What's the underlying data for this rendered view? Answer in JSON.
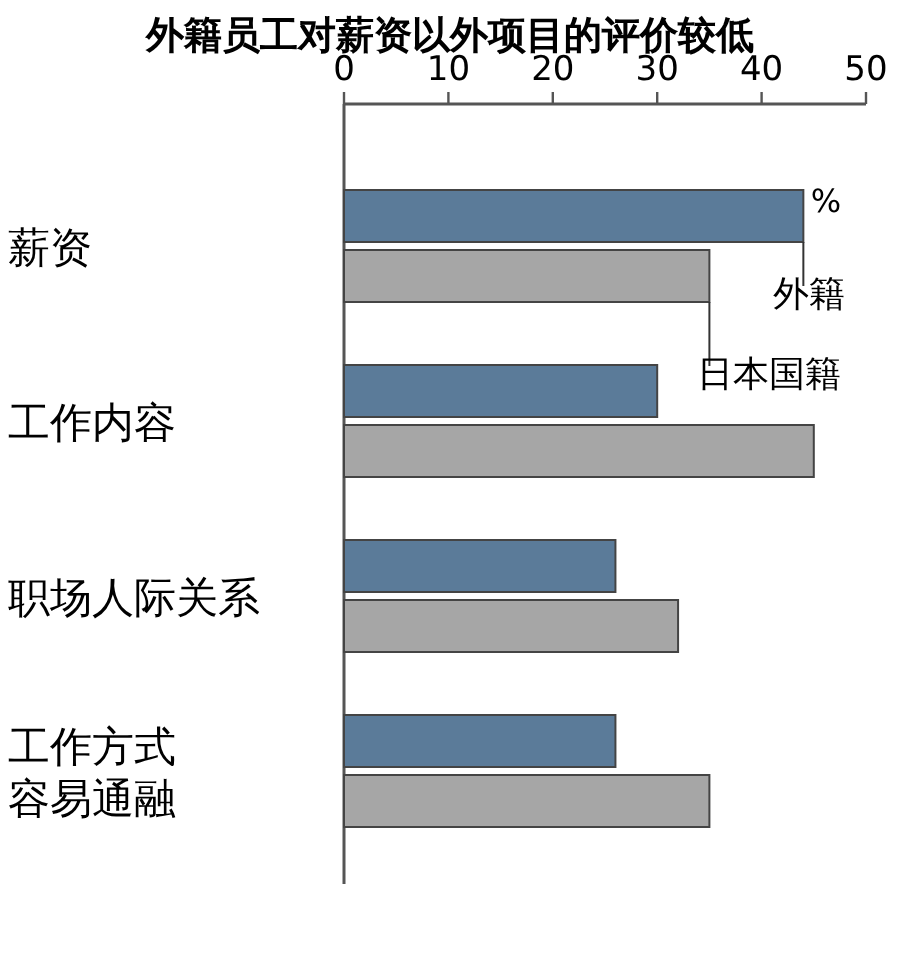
{
  "chart_data": {
    "type": "bar",
    "orientation": "horizontal",
    "title": "外籍员工对薪资以外项目的评价较低",
    "xlabel": "%",
    "categories": [
      "薪资",
      "工作内容",
      "职场人际关系",
      "工作方式容易通融"
    ],
    "series": [
      {
        "name": "外籍",
        "color": "#5b7b99",
        "values": [
          44,
          30,
          26,
          26
        ]
      },
      {
        "name": "日本国籍",
        "color": "#a6a6a6",
        "values": [
          35,
          45,
          32,
          35
        ]
      }
    ],
    "xlim": [
      0,
      50
    ],
    "xticks": [
      0,
      10,
      20,
      30,
      40,
      50
    ],
    "grid": false
  }
}
